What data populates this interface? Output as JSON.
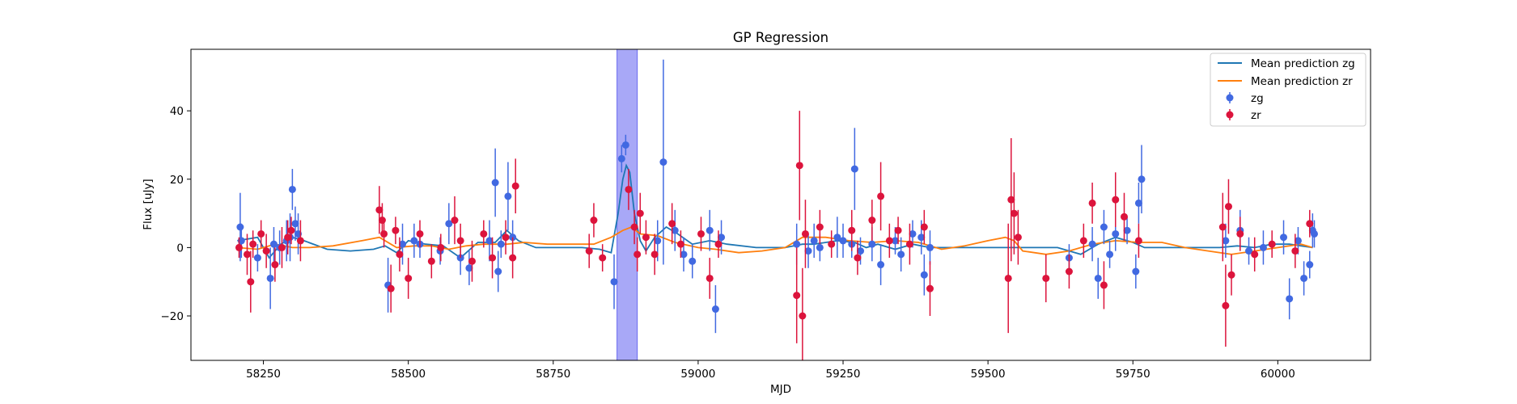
{
  "chart_data": {
    "type": "scatter",
    "title": "GP Regression",
    "xlabel": "MJD",
    "ylabel": "Flux [uJy]",
    "xlim": [
      58125,
      60160
    ],
    "ylim": [
      -33,
      58
    ],
    "xticks": [
      58250,
      58500,
      58750,
      59000,
      59250,
      59500,
      59750,
      60000
    ],
    "yticks": [
      -20,
      0,
      20,
      40
    ],
    "xtick_labels": [
      "58250",
      "58500",
      "58750",
      "59000",
      "59250",
      "59500",
      "59750",
      "60000"
    ],
    "ytick_labels": [
      "−20",
      "0",
      "20",
      "40"
    ],
    "grid": false,
    "legend_position": "top-right",
    "shaded_region": {
      "x": [
        58860,
        58895
      ],
      "color": "#a8a8f7"
    },
    "legend": [
      "Mean prediction zg",
      "Mean prediction zr",
      "zg",
      "zr"
    ],
    "lines": [
      {
        "name": "Mean prediction zg",
        "color": "#1f77b4",
        "x": [
          58205,
          58240,
          58260,
          58280,
          58300,
          58320,
          58360,
          58400,
          58440,
          58460,
          58480,
          58500,
          58530,
          58560,
          58590,
          58620,
          58650,
          58670,
          58690,
          58720,
          58760,
          58800,
          58830,
          58850,
          58862,
          58870,
          58876,
          58882,
          58890,
          58900,
          58910,
          58925,
          58945,
          58965,
          58990,
          59020,
          59050,
          59100,
          59150,
          59180,
          59200,
          59240,
          59270,
          59290,
          59310,
          59340,
          59370,
          59400,
          59450,
          59500,
          59540,
          59570,
          59620,
          59660,
          59690,
          59720,
          59750,
          59770,
          59800,
          59850,
          59900,
          59930,
          59960,
          59990,
          60020,
          60060
        ],
        "y": [
          2.0,
          3.0,
          -3.0,
          1.0,
          3.0,
          2.0,
          -0.5,
          -1.0,
          -0.5,
          0.5,
          -1.5,
          2.0,
          1.0,
          0.5,
          -3.0,
          1.5,
          1.5,
          5.0,
          2.0,
          0.0,
          0.0,
          0.0,
          -0.5,
          -1.5,
          10.0,
          20.0,
          24.0,
          22.0,
          10.0,
          2.0,
          -1.0,
          3.0,
          6.0,
          4.0,
          1.0,
          2.0,
          1.0,
          0.0,
          0.0,
          1.0,
          1.0,
          2.0,
          1.5,
          0.0,
          1.0,
          -0.5,
          1.0,
          0.0,
          0.0,
          0.0,
          0.0,
          0.0,
          0.0,
          -2.0,
          1.0,
          3.0,
          1.5,
          0.0,
          0.0,
          0.0,
          0.0,
          0.5,
          0.0,
          1.0,
          1.0,
          0.0
        ]
      },
      {
        "name": "Mean prediction zr",
        "color": "#ff7f0e",
        "x": [
          58205,
          58240,
          58270,
          58300,
          58330,
          58370,
          58420,
          58450,
          58480,
          58510,
          58540,
          58570,
          58600,
          58630,
          58670,
          58700,
          58740,
          58780,
          58820,
          58850,
          58870,
          58885,
          58900,
          58930,
          58960,
          59000,
          59030,
          59070,
          59110,
          59150,
          59180,
          59220,
          59260,
          59300,
          59340,
          59380,
          59420,
          59460,
          59500,
          59530,
          59545,
          59560,
          59600,
          59640,
          59680,
          59720,
          59760,
          59800,
          59840,
          59880,
          59920,
          59960,
          60000,
          60040,
          60060
        ],
        "y": [
          0.0,
          -0.5,
          1.0,
          0.0,
          0.0,
          0.5,
          2.0,
          3.0,
          0.0,
          0.5,
          0.5,
          -0.5,
          0.5,
          1.0,
          1.0,
          1.5,
          1.0,
          1.0,
          1.0,
          3.0,
          5.0,
          6.0,
          4.0,
          3.5,
          1.5,
          0.0,
          -0.5,
          -1.5,
          -1.0,
          0.0,
          3.0,
          3.0,
          2.0,
          1.5,
          2.0,
          1.5,
          -0.5,
          0.5,
          2.0,
          3.0,
          2.0,
          -1.0,
          -2.0,
          -1.0,
          1.0,
          2.0,
          1.5,
          1.5,
          0.0,
          -1.0,
          -2.0,
          -1.0,
          0.0,
          1.0,
          0.0
        ]
      }
    ],
    "series": [
      {
        "name": "zg",
        "color": "#4169e1",
        "points": [
          [
            58210,
            6,
            10
          ],
          [
            58212,
            2,
            5
          ],
          [
            58240,
            -3,
            4
          ],
          [
            58262,
            -9,
            9
          ],
          [
            58268,
            1,
            5
          ],
          [
            58278,
            0,
            5
          ],
          [
            58290,
            2,
            6
          ],
          [
            58296,
            3,
            7
          ],
          [
            58300,
            17,
            6
          ],
          [
            58305,
            7,
            5
          ],
          [
            58310,
            4,
            6
          ],
          [
            58465,
            -11,
            8
          ],
          [
            58490,
            1,
            6
          ],
          [
            58510,
            2,
            5
          ],
          [
            58520,
            1,
            4
          ],
          [
            58555,
            -1,
            4
          ],
          [
            58570,
            7,
            6
          ],
          [
            58590,
            -3,
            5
          ],
          [
            58605,
            -6,
            5
          ],
          [
            58640,
            2,
            6
          ],
          [
            58650,
            19,
            10
          ],
          [
            58655,
            -7,
            6
          ],
          [
            58660,
            1,
            4
          ],
          [
            58672,
            15,
            10
          ],
          [
            58680,
            3,
            5
          ],
          [
            58855,
            -10,
            8
          ],
          [
            58868,
            26,
            4
          ],
          [
            58875,
            30,
            3
          ],
          [
            58930,
            2,
            6
          ],
          [
            58940,
            25,
            30
          ],
          [
            58960,
            5,
            6
          ],
          [
            58975,
            -2,
            5
          ],
          [
            58990,
            -4,
            5
          ],
          [
            59020,
            5,
            6
          ],
          [
            59030,
            -18,
            7
          ],
          [
            59040,
            3,
            5
          ],
          [
            59170,
            1,
            6
          ],
          [
            59190,
            -1,
            5
          ],
          [
            59200,
            2,
            5
          ],
          [
            59210,
            0,
            4
          ],
          [
            59240,
            3,
            6
          ],
          [
            59250,
            2,
            5
          ],
          [
            59265,
            1,
            4
          ],
          [
            59270,
            23,
            12
          ],
          [
            59280,
            -1,
            4
          ],
          [
            59300,
            1,
            5
          ],
          [
            59315,
            -5,
            6
          ],
          [
            59340,
            2,
            4
          ],
          [
            59350,
            -2,
            5
          ],
          [
            59370,
            4,
            4
          ],
          [
            59385,
            3,
            5
          ],
          [
            59390,
            -8,
            6
          ],
          [
            59400,
            0,
            5
          ],
          [
            59640,
            -3,
            4
          ],
          [
            59680,
            1,
            5
          ],
          [
            59690,
            -9,
            6
          ],
          [
            59700,
            6,
            5
          ],
          [
            59710,
            -2,
            4
          ],
          [
            59720,
            4,
            5
          ],
          [
            59740,
            5,
            4
          ],
          [
            59755,
            -7,
            5
          ],
          [
            59760,
            13,
            6
          ],
          [
            59765,
            20,
            10
          ],
          [
            59910,
            2,
            5
          ],
          [
            59935,
            5,
            6
          ],
          [
            59950,
            -1,
            4
          ],
          [
            59975,
            0,
            5
          ],
          [
            60010,
            3,
            5
          ],
          [
            60020,
            -15,
            6
          ],
          [
            60035,
            2,
            4
          ],
          [
            60045,
            -9,
            5
          ],
          [
            60055,
            -5,
            4
          ],
          [
            60060,
            5,
            5
          ],
          [
            60063,
            4,
            4
          ]
        ]
      },
      {
        "name": "zr",
        "color": "#dc143c",
        "points": [
          [
            58208,
            0,
            3
          ],
          [
            58222,
            -2,
            6
          ],
          [
            58228,
            -10,
            9
          ],
          [
            58232,
            1,
            4
          ],
          [
            58246,
            4,
            4
          ],
          [
            58255,
            -1,
            5
          ],
          [
            58270,
            -5,
            5
          ],
          [
            58282,
            0,
            6
          ],
          [
            58292,
            3,
            5
          ],
          [
            58298,
            5,
            4
          ],
          [
            58314,
            2,
            6
          ],
          [
            58450,
            11,
            7
          ],
          [
            58455,
            8,
            5
          ],
          [
            58458,
            4,
            4
          ],
          [
            58470,
            -12,
            7
          ],
          [
            58478,
            5,
            4
          ],
          [
            58485,
            -2,
            5
          ],
          [
            58500,
            -9,
            6
          ],
          [
            58520,
            4,
            4
          ],
          [
            58540,
            -4,
            5
          ],
          [
            58556,
            0,
            4
          ],
          [
            58580,
            8,
            7
          ],
          [
            58590,
            2,
            5
          ],
          [
            58610,
            -4,
            6
          ],
          [
            58630,
            4,
            4
          ],
          [
            58645,
            -3,
            6
          ],
          [
            58668,
            3,
            5
          ],
          [
            58680,
            -3,
            6
          ],
          [
            58685,
            18,
            8
          ],
          [
            58820,
            8,
            5
          ],
          [
            58812,
            -1,
            5
          ],
          [
            58835,
            -3,
            4
          ],
          [
            58880,
            17,
            6
          ],
          [
            58890,
            6,
            5
          ],
          [
            58895,
            -2,
            5
          ],
          [
            58900,
            10,
            6
          ],
          [
            58910,
            3,
            5
          ],
          [
            58925,
            -2,
            6
          ],
          [
            58955,
            7,
            6
          ],
          [
            58970,
            1,
            4
          ],
          [
            59005,
            4,
            5
          ],
          [
            59020,
            -9,
            6
          ],
          [
            59035,
            1,
            4
          ],
          [
            59170,
            -14,
            14
          ],
          [
            59175,
            24,
            16
          ],
          [
            59180,
            -20,
            14
          ],
          [
            59185,
            4,
            10
          ],
          [
            59210,
            6,
            5
          ],
          [
            59230,
            1,
            4
          ],
          [
            59265,
            5,
            6
          ],
          [
            59275,
            -3,
            5
          ],
          [
            59300,
            8,
            6
          ],
          [
            59315,
            15,
            10
          ],
          [
            59330,
            2,
            5
          ],
          [
            59345,
            5,
            4
          ],
          [
            59365,
            1,
            6
          ],
          [
            59390,
            6,
            5
          ],
          [
            59400,
            -12,
            8
          ],
          [
            59535,
            -9,
            16
          ],
          [
            59540,
            14,
            18
          ],
          [
            59545,
            10,
            12
          ],
          [
            59552,
            3,
            8
          ],
          [
            59600,
            -9,
            7
          ],
          [
            59640,
            -7,
            5
          ],
          [
            59665,
            2,
            5
          ],
          [
            59680,
            13,
            6
          ],
          [
            59700,
            -11,
            7
          ],
          [
            59720,
            14,
            8
          ],
          [
            59735,
            9,
            7
          ],
          [
            59760,
            2,
            5
          ],
          [
            59905,
            6,
            10
          ],
          [
            59910,
            -17,
            12
          ],
          [
            59915,
            12,
            8
          ],
          [
            59920,
            -8,
            6
          ],
          [
            59935,
            4,
            5
          ],
          [
            59960,
            -2,
            5
          ],
          [
            59990,
            1,
            4
          ],
          [
            60030,
            -1,
            5
          ],
          [
            60055,
            7,
            4
          ]
        ]
      }
    ]
  }
}
